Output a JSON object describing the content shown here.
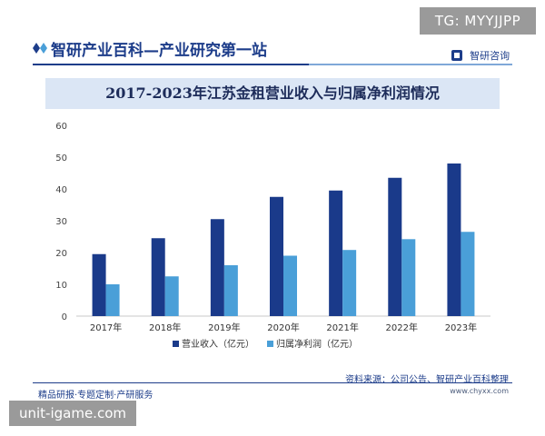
{
  "header": {
    "tg_badge": "TG: MYYJJPP",
    "brand_title": "智研产业百科—产业研究第一站",
    "logo_text": "智研咨询"
  },
  "footer": {
    "source": "资料来源：公司公告、智研产业百科整理",
    "site": "www.chyxx.com",
    "slogan": "精品研报·专题定制·产研服务",
    "watermark_badge": "unit-igame.com"
  },
  "colors": {
    "brand_navy": "#1d3d8a",
    "series_revenue": "#1a3a8a",
    "series_profit": "#4a9fd8",
    "title_band": "#dbe6f5"
  },
  "chart_data": {
    "type": "bar",
    "title": "2017-2023年江苏金租营业收入与归属净利润情况",
    "xlabel": "",
    "ylabel": "",
    "ylim": [
      0,
      60
    ],
    "yticks": [
      0,
      10,
      20,
      30,
      40,
      50,
      60
    ],
    "grid": false,
    "legend_position": "bottom",
    "categories": [
      "2017年",
      "2018年",
      "2019年",
      "2020年",
      "2021年",
      "2022年",
      "2023年"
    ],
    "series": [
      {
        "name": "营业收入（亿元）",
        "color": "#1a3a8a",
        "values": [
          19.5,
          24.5,
          30.5,
          37.5,
          39.5,
          43.5,
          48.0
        ]
      },
      {
        "name": "归属净利润（亿元）",
        "color": "#4a9fd8",
        "values": [
          10.0,
          12.5,
          16.0,
          19.0,
          20.8,
          24.2,
          26.5
        ]
      }
    ]
  }
}
